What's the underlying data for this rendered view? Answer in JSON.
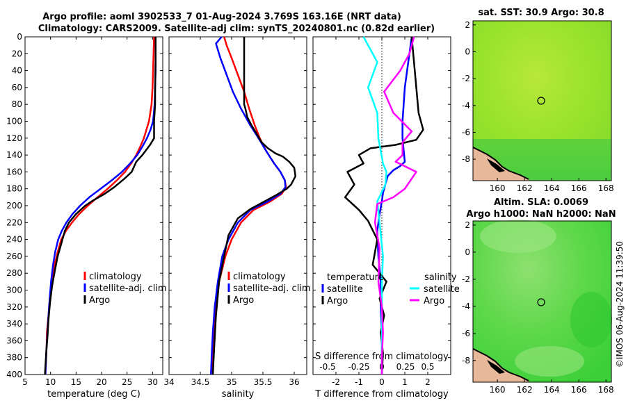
{
  "titles": {
    "line1": "Argo profile: aoml 3902533_7 01-Aug-2024 3.769S 163.16E (NRT data)",
    "line2": "Climatology: CARS2009. Satellite-adj clim: synTS_20240801.nc (0.82d earlier)",
    "sst_title": "sat. SST: 30.9 Argo: 30.8",
    "sla_title1": "Altim. SLA: 0.0069",
    "sla_title2": "Argo h1000: NaN h2000: NaN",
    "watermark": "©IMOS 06-Aug-2024 11:39:50"
  },
  "colors": {
    "climatology": "#ff0000",
    "satellite": "#0000ff",
    "argo": "#000000",
    "satellite_s": "#00ffff",
    "salinity_diff": "#ff00ff"
  },
  "chart_data": [
    {
      "id": "temperature",
      "type": "line",
      "xlabel": "temperature (deg C)",
      "ylabel": "",
      "xlim": [
        5,
        32
      ],
      "ylim": [
        0,
        400
      ],
      "xticks": [
        5,
        10,
        15,
        20,
        25,
        30
      ],
      "yticks": [
        0,
        20,
        40,
        60,
        80,
        100,
        120,
        140,
        160,
        180,
        200,
        220,
        240,
        260,
        280,
        300,
        320,
        340,
        360,
        380,
        400
      ],
      "legend": [
        "climatology",
        "satellite-adj. clim",
        "Argo"
      ],
      "series": [
        {
          "name": "climatology",
          "color": "#ff0000",
          "x": [
            30.3,
            30.2,
            30.1,
            30.0,
            29.8,
            29.3,
            28.8,
            28.3,
            27.6,
            26.8,
            25.8,
            24.6,
            23.0,
            21.2,
            19.2,
            17.3,
            15.6,
            14.2,
            13.0,
            12.1,
            11.4,
            10.8,
            10.3,
            9.9,
            9.6,
            9.3,
            9.2,
            9.0
          ],
          "y": [
            0,
            20,
            40,
            60,
            80,
            100,
            110,
            120,
            130,
            140,
            150,
            160,
            170,
            180,
            190,
            200,
            210,
            220,
            230,
            240,
            255,
            270,
            290,
            310,
            330,
            350,
            370,
            400
          ]
        },
        {
          "name": "satellite-adj. clim",
          "color": "#0000ff",
          "x": [
            30.6,
            30.6,
            30.6,
            30.5,
            30.4,
            30.1,
            29.6,
            28.9,
            28.0,
            27.0,
            25.6,
            24.0,
            22.0,
            19.8,
            17.6,
            15.8,
            14.3,
            13.1,
            12.2,
            11.5,
            10.9,
            10.5,
            10.1,
            9.7,
            9.4,
            9.2,
            9.0
          ],
          "y": [
            0,
            20,
            40,
            60,
            80,
            100,
            110,
            120,
            130,
            140,
            150,
            160,
            170,
            180,
            190,
            200,
            210,
            220,
            230,
            240,
            255,
            270,
            290,
            320,
            350,
            370,
            400
          ]
        },
        {
          "name": "Argo",
          "color": "#000000",
          "x": [
            30.6,
            30.6,
            30.5,
            30.5,
            30.3,
            30.3,
            29.5,
            28.0,
            26.8,
            25.9,
            24.5,
            22.5,
            20.6,
            18.3,
            16.8,
            15.0,
            13.6,
            12.8,
            12.1,
            11.4,
            10.9,
            10.3,
            9.9,
            9.6,
            9.4,
            9.2,
            9.0,
            8.9
          ],
          "y": [
            0,
            30,
            60,
            80,
            100,
            120,
            128,
            140,
            148,
            160,
            168,
            178,
            186,
            194,
            200,
            210,
            220,
            230,
            245,
            260,
            275,
            295,
            315,
            335,
            355,
            370,
            390,
            400
          ]
        }
      ]
    },
    {
      "id": "salinity",
      "type": "line",
      "xlabel": "salinity",
      "xlim": [
        34,
        36.2
      ],
      "ylim": [
        0,
        400
      ],
      "xticks": [
        34,
        34.5,
        35,
        35.5,
        36
      ],
      "legend": [
        "climatology",
        "satellite-adj. clim",
        "Argo"
      ],
      "series": [
        {
          "name": "climatology",
          "color": "#ff0000",
          "x": [
            34.88,
            34.92,
            35.0,
            35.1,
            35.2,
            35.28,
            35.37,
            35.45,
            35.55,
            35.68,
            35.78,
            35.85,
            35.87,
            35.8,
            35.62,
            35.35,
            35.15,
            35.0,
            34.9,
            34.8,
            34.75,
            34.72,
            34.7,
            34.68,
            34.67
          ],
          "y": [
            0,
            10,
            25,
            45,
            65,
            85,
            105,
            120,
            135,
            150,
            160,
            170,
            178,
            186,
            195,
            205,
            220,
            240,
            260,
            290,
            320,
            350,
            370,
            390,
            400
          ]
        },
        {
          "name": "satellite-adj. clim",
          "color": "#0000ff",
          "x": [
            34.84,
            34.75,
            34.82,
            34.92,
            35.02,
            35.15,
            35.3,
            35.43,
            35.55,
            35.68,
            35.78,
            35.85,
            35.86,
            35.78,
            35.58,
            35.3,
            35.1,
            34.95,
            34.85,
            34.78,
            34.73,
            34.7,
            34.68,
            34.67
          ],
          "y": [
            0,
            8,
            25,
            45,
            65,
            85,
            105,
            120,
            135,
            150,
            160,
            170,
            178,
            186,
            195,
            205,
            220,
            240,
            260,
            290,
            320,
            350,
            380,
            400
          ]
        },
        {
          "name": "Argo",
          "color": "#000000",
          "x": [
            35.2,
            35.2,
            35.2,
            35.22,
            35.25,
            35.32,
            35.4,
            35.48,
            35.58,
            35.7,
            35.82,
            35.92,
            36.0,
            36.02,
            35.95,
            35.88,
            35.7,
            35.5,
            35.3,
            35.1,
            34.95,
            34.88,
            34.8,
            34.75,
            34.72,
            34.7
          ],
          "y": [
            0,
            40,
            80,
            85,
            95,
            105,
            115,
            125,
            132,
            138,
            142,
            148,
            155,
            165,
            175,
            180,
            188,
            196,
            204,
            215,
            235,
            260,
            290,
            330,
            370,
            400
          ]
        }
      ]
    },
    {
      "id": "differences",
      "type": "line",
      "xlabel": "T difference from climatology",
      "xlabel_top": "S difference from climatology",
      "xlim": [
        -3,
        3
      ],
      "ylim": [
        0,
        400
      ],
      "xticks": [
        -2,
        -1,
        0,
        1,
        2
      ],
      "xticks_s": [
        -0.5,
        -0.25,
        0,
        0.25,
        0.5
      ],
      "legend_left_title": "temperature",
      "legend_right_title": "salinity",
      "legend_left": [
        "satellite",
        "Argo"
      ],
      "legend_right": [
        "satellite",
        "Argo"
      ],
      "series": [
        {
          "name": "temperature satellite",
          "color": "#0000ff",
          "x": [
            1.3,
            1.2,
            1.0,
            0.9,
            0.9,
            0.95,
            1.0,
            0.8,
            0.5,
            0.25,
            0.15,
            0.05,
            0.0,
            -0.1,
            -0.2,
            -0.15,
            -0.05,
            -0.05,
            0.0,
            0.0,
            0.0
          ],
          "y": [
            0,
            20,
            60,
            100,
            120,
            135,
            148,
            153,
            158,
            165,
            175,
            185,
            195,
            210,
            230,
            260,
            290,
            320,
            350,
            380,
            400
          ]
        },
        {
          "name": "temperature Argo",
          "color": "#000000",
          "x": [
            1.3,
            1.4,
            1.5,
            1.6,
            1.8,
            1.5,
            0.6,
            -0.5,
            -1.0,
            -0.8,
            -1.5,
            -1.2,
            -1.6,
            -1.0,
            -0.6,
            -0.2,
            -0.4,
            0.2,
            -0.1,
            0.1,
            -0.05,
            0.05,
            0.0
          ],
          "y": [
            0,
            30,
            60,
            90,
            110,
            122,
            128,
            132,
            140,
            150,
            160,
            175,
            190,
            205,
            218,
            240,
            270,
            290,
            310,
            330,
            350,
            375,
            400
          ]
        },
        {
          "name": "salinity satellite",
          "color": "#00ffff",
          "x": [
            -0.8,
            -0.2,
            -0.6,
            -0.2,
            -0.15,
            0.05,
            0.2,
            0.15,
            -0.2,
            -0.1,
            0.05,
            0.0,
            0.0,
            0.0,
            0.0
          ],
          "y": [
            0,
            30,
            60,
            90,
            120,
            150,
            160,
            175,
            195,
            220,
            260,
            290,
            320,
            360,
            400
          ]
        },
        {
          "name": "salinity Argo",
          "color": "#ff00ff",
          "x": [
            1.4,
            1.2,
            0.8,
            0.1,
            0.5,
            1.3,
            0.9,
            0.9,
            0.6,
            1.5,
            1.0,
            0.5,
            -0.2,
            -0.3,
            -0.1,
            -0.15,
            0.0,
            0.05,
            0.0,
            0.0
          ],
          "y": [
            0,
            20,
            40,
            65,
            90,
            112,
            125,
            140,
            148,
            160,
            180,
            190,
            198,
            220,
            250,
            290,
            320,
            350,
            380,
            400
          ]
        }
      ]
    },
    {
      "id": "sst_map",
      "type": "heatmap",
      "title": "sat. SST: 30.9 Argo: 30.8",
      "xticks": [
        160,
        162,
        164,
        166,
        168
      ],
      "yticks": [
        2,
        0,
        -2,
        -4,
        -6,
        -8
      ],
      "xlim": [
        158.2,
        168.4
      ],
      "ylim": [
        -9.6,
        2.3
      ],
      "marker": [
        163.16,
        -3.77
      ]
    },
    {
      "id": "sla_map",
      "type": "heatmap",
      "title": "Altim. SLA: 0.0069",
      "subtitle": "Argo h1000: NaN h2000: NaN",
      "xticks": [
        160,
        162,
        164,
        166,
        168
      ],
      "yticks": [
        2,
        0,
        -2,
        -4,
        -6,
        -8
      ],
      "xlim": [
        158.2,
        168.4
      ],
      "ylim": [
        -9.6,
        2.3
      ],
      "marker": [
        163.16,
        -3.77
      ]
    }
  ]
}
